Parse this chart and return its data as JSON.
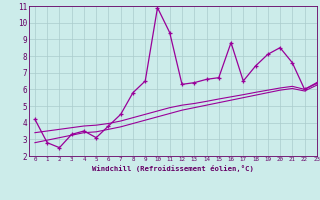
{
  "xlabel": "Windchill (Refroidissement éolien,°C)",
  "x_values": [
    0,
    1,
    2,
    3,
    4,
    5,
    6,
    7,
    8,
    9,
    10,
    11,
    12,
    13,
    14,
    15,
    16,
    17,
    18,
    19,
    20,
    21,
    22,
    23
  ],
  "y_main": [
    4.2,
    2.8,
    2.5,
    3.3,
    3.5,
    3.1,
    3.8,
    4.5,
    5.8,
    6.5,
    10.9,
    9.4,
    6.3,
    6.4,
    6.6,
    6.7,
    8.8,
    6.5,
    7.4,
    8.1,
    8.5,
    7.6,
    6.0,
    6.4
  ],
  "y_trend1": [
    2.8,
    2.95,
    3.1,
    3.25,
    3.4,
    3.45,
    3.6,
    3.75,
    3.95,
    4.15,
    4.35,
    4.55,
    4.75,
    4.9,
    5.05,
    5.2,
    5.35,
    5.5,
    5.65,
    5.8,
    5.95,
    6.05,
    5.9,
    6.25
  ],
  "y_trend2": [
    3.4,
    3.5,
    3.6,
    3.7,
    3.8,
    3.85,
    3.95,
    4.1,
    4.3,
    4.5,
    4.7,
    4.9,
    5.05,
    5.15,
    5.28,
    5.42,
    5.55,
    5.68,
    5.82,
    5.95,
    6.08,
    6.18,
    6.0,
    6.35
  ],
  "line_color": "#990099",
  "bg_color": "#ccecea",
  "grid_color": "#aacccc",
  "axis_color": "#660066",
  "ylim": [
    2,
    11
  ],
  "xlim": [
    -0.5,
    23
  ],
  "yticks": [
    2,
    3,
    4,
    5,
    6,
    7,
    8,
    9,
    10,
    11
  ],
  "xticks": [
    0,
    1,
    2,
    3,
    4,
    5,
    6,
    7,
    8,
    9,
    10,
    11,
    12,
    13,
    14,
    15,
    16,
    17,
    18,
    19,
    20,
    21,
    22,
    23
  ]
}
